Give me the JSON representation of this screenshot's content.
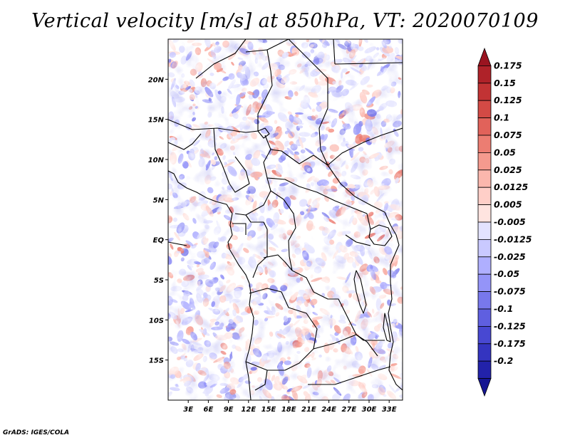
{
  "title": "Vertical velocity [m/s] at 850hPa, VT: 2020070109",
  "credit": "GrADS: IGES/COLA",
  "colors": {
    "positive_scale": [
      "#ffe4e0",
      "#ffcfc8",
      "#fbb7ad",
      "#f59a8e",
      "#ec7d72",
      "#e1625a",
      "#d34a45",
      "#c23334",
      "#af2229",
      "#9a1420"
    ],
    "negative_scale": [
      "#e3e3ff",
      "#c9c9ff",
      "#afafff",
      "#9494f8",
      "#7878ec",
      "#5f5fe0",
      "#4848d2",
      "#3434c0",
      "#2222aa",
      "#151592"
    ],
    "border": "#000000"
  },
  "chart_data": {
    "type": "heatmap",
    "variable": "Vertical velocity",
    "units": "m/s",
    "level": "850hPa",
    "valid_time": "2020070109",
    "lon_range": [
      0,
      35
    ],
    "lat_range": [
      -20,
      25
    ],
    "x_ticks": [
      {
        "value": 3,
        "label": "3E"
      },
      {
        "value": 6,
        "label": "6E"
      },
      {
        "value": 9,
        "label": "9E"
      },
      {
        "value": 12,
        "label": "12E"
      },
      {
        "value": 15,
        "label": "15E"
      },
      {
        "value": 18,
        "label": "18E"
      },
      {
        "value": 21,
        "label": "21E"
      },
      {
        "value": 24,
        "label": "24E"
      },
      {
        "value": 27,
        "label": "27E"
      },
      {
        "value": 30,
        "label": "30E"
      },
      {
        "value": 33,
        "label": "33E"
      }
    ],
    "y_ticks": [
      {
        "value": 20,
        "label": "20N"
      },
      {
        "value": 15,
        "label": "15N"
      },
      {
        "value": 10,
        "label": "10N"
      },
      {
        "value": 5,
        "label": "5N"
      },
      {
        "value": 0,
        "label": "EQ"
      },
      {
        "value": -5,
        "label": "5S"
      },
      {
        "value": -10,
        "label": "10S"
      },
      {
        "value": -15,
        "label": "15S"
      }
    ],
    "colorbar_levels": [
      "0.175",
      "0.15",
      "0.125",
      "0.1",
      "0.075",
      "0.05",
      "0.025",
      "0.0125",
      "0.005",
      "-0.005",
      "-0.0125",
      "-0.025",
      "-0.05",
      "-0.075",
      "-0.1",
      "-0.125",
      "-0.175",
      "-0.2"
    ]
  }
}
